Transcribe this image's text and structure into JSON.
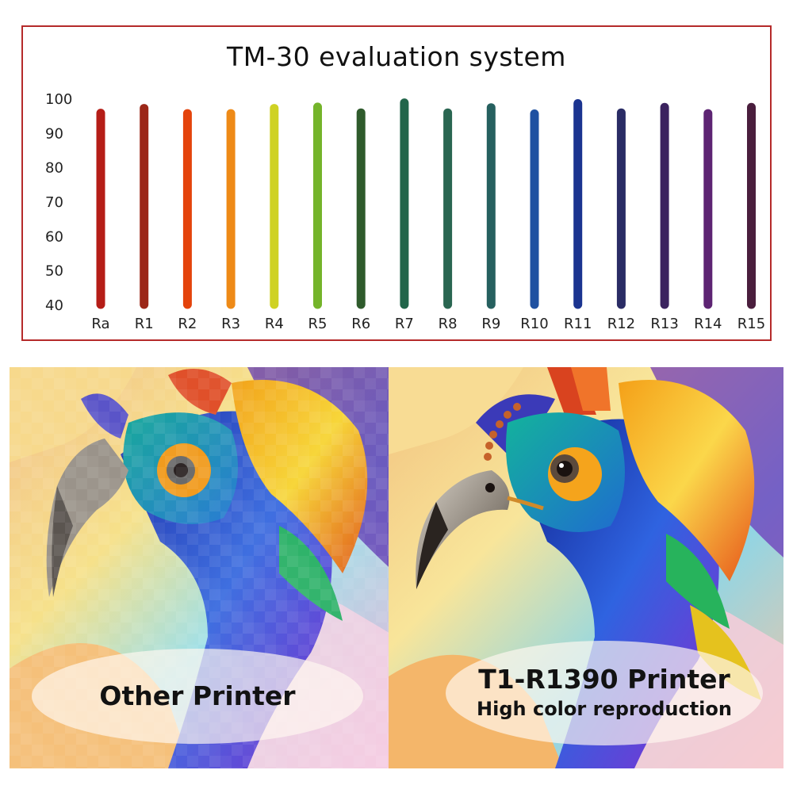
{
  "chart_data": {
    "type": "bar",
    "title": "TM-30 evaluation system",
    "categories": [
      "Ra",
      "R1",
      "R2",
      "R3",
      "R4",
      "R5",
      "R6",
      "R7",
      "R8",
      "R9",
      "R10",
      "R11",
      "R12",
      "R13",
      "R14",
      "R15"
    ],
    "values": [
      95.7,
      97.1,
      95.6,
      95.6,
      97.1,
      97.5,
      95.8,
      98.7,
      95.8,
      97.3,
      95.5,
      98.5,
      95.8,
      97.4,
      95.6,
      97.4
    ],
    "colors": [
      "#b51d17",
      "#9c2718",
      "#e4430b",
      "#ee8a17",
      "#cfd224",
      "#74b42a",
      "#2f5b2c",
      "#21654a",
      "#2a6651",
      "#26605f",
      "#1f51a1",
      "#1b3490",
      "#2a2c65",
      "#3b235f",
      "#5d2473",
      "#4a1e3d"
    ],
    "ylim": [
      40,
      100
    ],
    "yticks": [
      40,
      50,
      60,
      70,
      80,
      90,
      100
    ],
    "grid": false,
    "legend": "none",
    "border_color": "#b52a2a"
  },
  "left_panel": {
    "caption": "Other Printer",
    "image_description_icon": "pixelated-peacock-image"
  },
  "right_panel": {
    "caption_main": "T1-R1390 Printer",
    "caption_sub": "High color reproduction",
    "image_description_icon": "sharp-peacock-image"
  }
}
